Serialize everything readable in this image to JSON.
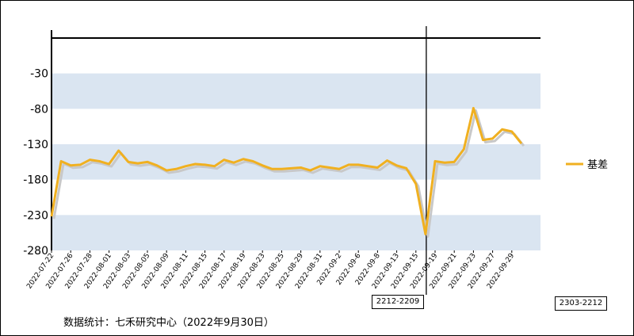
{
  "chart_data": {
    "type": "line",
    "title": "",
    "xlabel": "",
    "ylabel": "",
    "ylim": [
      -280,
      20
    ],
    "yticks": [
      -30,
      -80,
      -130,
      -180,
      -230,
      -280
    ],
    "grid": "alternating-bands",
    "legend_position": "right",
    "series": [
      {
        "name": "基差",
        "color": "#F0B020",
        "values": [
          -232,
          -154,
          -160,
          -159,
          -152,
          -154,
          -158,
          -139,
          -155,
          -157,
          -155,
          -160,
          -167,
          -165,
          -161,
          -158,
          -159,
          -161,
          -152,
          -156,
          -151,
          -154,
          -160,
          -165,
          -165,
          -164,
          -163,
          -167,
          -161,
          -163,
          -165,
          -159,
          -159,
          -161,
          -163,
          -153,
          -160,
          -164,
          -186,
          -257,
          -154,
          -156,
          -155,
          -137,
          -79,
          -124,
          -122,
          -109,
          -112,
          -129
        ]
      }
    ],
    "x_tick_labels": [
      "2022-07-22",
      "2022-07-26",
      "2022-07-28",
      "2022-08-01",
      "2022-08-03",
      "2022-08-05",
      "2022-08-09",
      "2022-08-11",
      "2022-08-15",
      "2022-08-17",
      "2022-08-19",
      "2022-08-23",
      "2022-08-25",
      "2022-08-29",
      "2022-08-31",
      "2022-09-2",
      "2022-09-6",
      "2022-09-8",
      "2022-09-13",
      "2022-09-15",
      "2022-09-19",
      "2022-09-21",
      "2022-09-23",
      "2022-09-27",
      "2022-09-29"
    ],
    "annotations": [
      {
        "label": "2212-2209",
        "at_index": 39
      },
      {
        "label": "2303-2212"
      }
    ],
    "source": "数据统计：七禾研究中心（2022年9月30日）"
  },
  "colors": {
    "band": "#DAE5F1",
    "line": "#F0B020",
    "shadow": "#C8C8C8"
  }
}
